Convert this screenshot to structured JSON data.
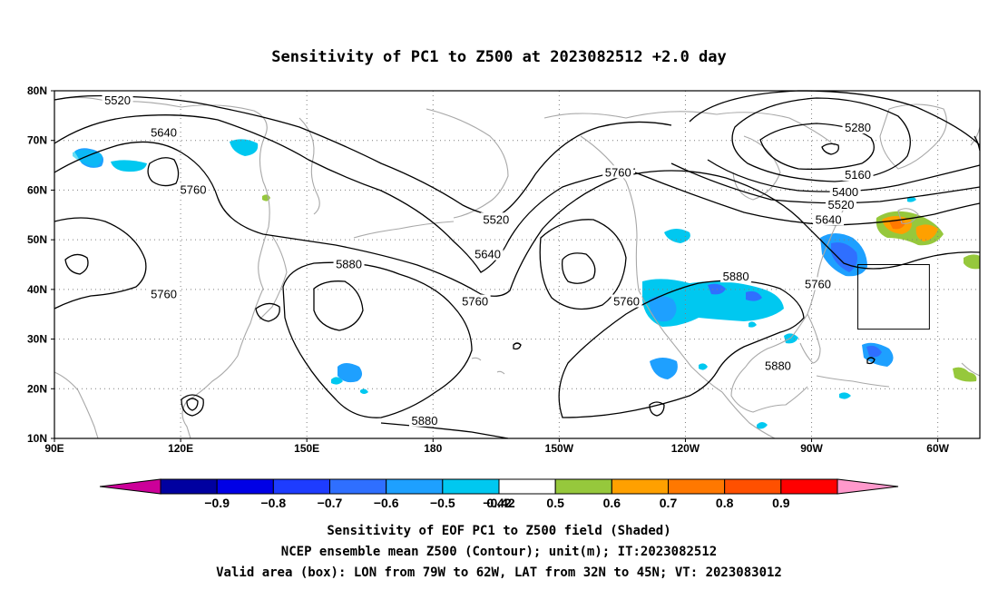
{
  "title": "Sensitivity of PC1 to Z500 at 2023082512 +2.0 day",
  "map": {
    "projection": "cylindrical",
    "lon_range": [
      90,
      310
    ],
    "lat_range": [
      10,
      80
    ],
    "lat_ticks": [
      {
        "value": 80,
        "label": "80N"
      },
      {
        "value": 70,
        "label": "70N"
      },
      {
        "value": 60,
        "label": "60N"
      },
      {
        "value": 50,
        "label": "50N"
      },
      {
        "value": 40,
        "label": "40N"
      },
      {
        "value": 30,
        "label": "30N"
      },
      {
        "value": 20,
        "label": "20N"
      },
      {
        "value": 10,
        "label": "10N"
      }
    ],
    "lon_ticks": [
      {
        "value": 90,
        "label": "90E"
      },
      {
        "value": 120,
        "label": "120E"
      },
      {
        "value": 150,
        "label": "150E"
      },
      {
        "value": 180,
        "label": "180"
      },
      {
        "value": 210,
        "label": "150W"
      },
      {
        "value": 240,
        "label": "120W"
      },
      {
        "value": 270,
        "label": "90W"
      },
      {
        "value": 300,
        "label": "60W"
      }
    ],
    "grid": "dotted",
    "coastline_color": "#a8a8a8",
    "contour_color": "#000000",
    "contour_labels": [
      {
        "text": "5520",
        "lon": 105,
        "lat": 78
      },
      {
        "text": "5640",
        "lon": 116,
        "lat": 71.5
      },
      {
        "text": "5760",
        "lon": 123,
        "lat": 60
      },
      {
        "text": "5760",
        "lon": 116,
        "lat": 39
      },
      {
        "text": "5880",
        "lon": 160,
        "lat": 45
      },
      {
        "text": "5520",
        "lon": 195,
        "lat": 54
      },
      {
        "text": "5640",
        "lon": 193,
        "lat": 47
      },
      {
        "text": "5760",
        "lon": 190,
        "lat": 37.5
      },
      {
        "text": "5760",
        "lon": 226,
        "lat": 37.5
      },
      {
        "text": "5760",
        "lon": 224,
        "lat": 63.5
      },
      {
        "text": "5880",
        "lon": 252,
        "lat": 42.5
      },
      {
        "text": "5880",
        "lon": 262,
        "lat": 24.5
      },
      {
        "text": "5880",
        "lon": 178,
        "lat": 13.5
      },
      {
        "text": "5280",
        "lon": 281,
        "lat": 72.5
      },
      {
        "text": "5160",
        "lon": 281,
        "lat": 63
      },
      {
        "text": "5400",
        "lon": 278,
        "lat": 59.5
      },
      {
        "text": "5520",
        "lon": 277,
        "lat": 57
      },
      {
        "text": "5640",
        "lon": 274,
        "lat": 54
      },
      {
        "text": "5760",
        "lon": 271.5,
        "lat": 41
      }
    ],
    "valid_box": {
      "lon_min": 281,
      "lon_max": 298,
      "lat_min": 32,
      "lat_max": 45
    }
  },
  "colorbar": {
    "bins": [
      {
        "label": "",
        "color": "#cc0099"
      },
      {
        "label": "−0.9",
        "color": "#0000a0"
      },
      {
        "label": "−0.8",
        "color": "#0000e6"
      },
      {
        "label": "−0.7",
        "color": "#1e3cff"
      },
      {
        "label": "−0.6",
        "color": "#2f6fff"
      },
      {
        "label": "−0.5",
        "color": "#1ea0ff"
      },
      {
        "label": "−0.42",
        "color": "#00c8f0"
      },
      {
        "label": "0.42",
        "color": "#ffffff"
      },
      {
        "label": "0.5",
        "color": "#96c83c"
      },
      {
        "label": "0.6",
        "color": "#ffa000"
      },
      {
        "label": "0.7",
        "color": "#ff7800"
      },
      {
        "label": "0.8",
        "color": "#ff5000"
      },
      {
        "label": "0.9",
        "color": "#ff0000"
      },
      {
        "label": "",
        "color": "#ff99cc"
      }
    ]
  },
  "caption": {
    "line1": "Sensitivity of EOF PC1 to Z500 field (Shaded)",
    "line2": "NCEP ensemble mean Z500 (Contour); unit(m); IT:2023082512",
    "line3": "Valid area (box): LON from 79W to 62W, LAT from 32N to 45N; VT: 2023083012"
  }
}
